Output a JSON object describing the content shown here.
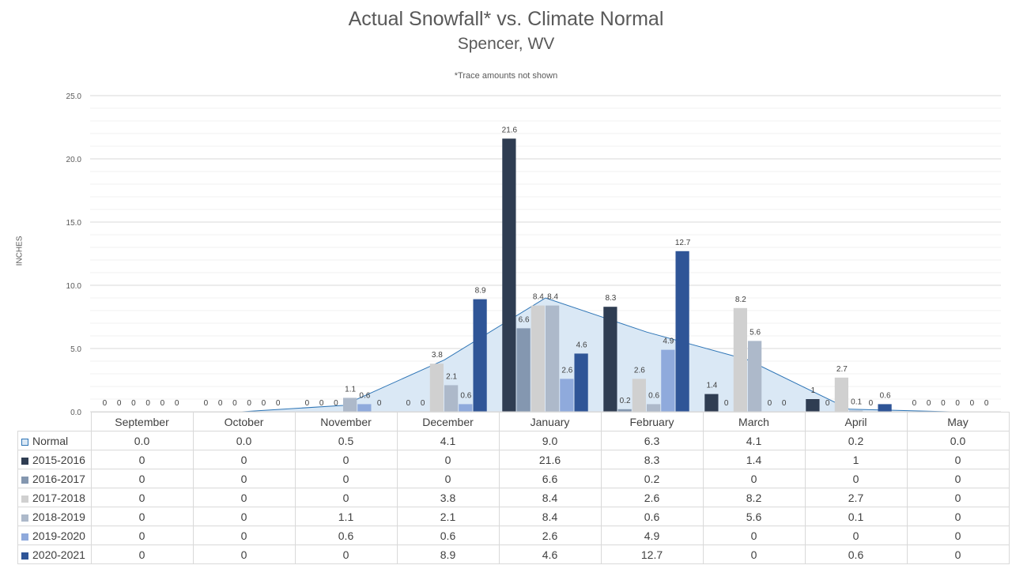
{
  "title": "Actual Snowfall* vs. Climate Normal",
  "subtitle": "Spencer, WV",
  "note": "*Trace amounts not shown",
  "chart_data": {
    "type": "bar",
    "title": "Actual Snowfall* vs. Climate Normal",
    "subtitle": "Spencer, WV",
    "ylabel": "INCHES",
    "xlabel": "",
    "ylim": [
      0,
      25
    ],
    "yticks": [
      "0.0",
      "5.0",
      "10.0",
      "15.0",
      "20.0",
      "25.0"
    ],
    "grid": true,
    "legend": "data table below chart",
    "categories": [
      "September",
      "October",
      "November",
      "December",
      "January",
      "February",
      "March",
      "April",
      "May"
    ],
    "normal": {
      "name": "Normal",
      "type": "area",
      "color": "#dae8f5",
      "line_color": "#2e75b6",
      "values": [
        0.0,
        0.0,
        0.5,
        4.1,
        9.0,
        6.3,
        4.1,
        0.2,
        0.0
      ],
      "labels": [
        "0.0",
        "0.0",
        "0.5",
        "4.1",
        "9.0",
        "6.3",
        "4.1",
        "0.2",
        "0.0"
      ]
    },
    "series": [
      {
        "name": "2015-2016",
        "color": "#2f3d52",
        "values": [
          0,
          0,
          0,
          0,
          21.6,
          8.3,
          1.4,
          1,
          0
        ]
      },
      {
        "name": "2016-2017",
        "color": "#8497b0",
        "values": [
          0,
          0,
          0,
          0,
          6.6,
          0.2,
          0,
          0,
          0
        ]
      },
      {
        "name": "2017-2018",
        "color": "#d0d0d0",
        "values": [
          0,
          0,
          0,
          3.8,
          8.4,
          2.6,
          8.2,
          2.7,
          0
        ]
      },
      {
        "name": "2018-2019",
        "color": "#adb9ca",
        "values": [
          0,
          0,
          1.1,
          2.1,
          8.4,
          0.6,
          5.6,
          0.1,
          0
        ]
      },
      {
        "name": "2019-2020",
        "color": "#8faadc",
        "values": [
          0,
          0,
          0.6,
          0.6,
          2.6,
          4.9,
          0,
          0,
          0
        ]
      },
      {
        "name": "2020-2021",
        "color": "#2f5597",
        "values": [
          0,
          0,
          0,
          8.9,
          4.6,
          12.7,
          0,
          0.6,
          0
        ]
      }
    ]
  }
}
